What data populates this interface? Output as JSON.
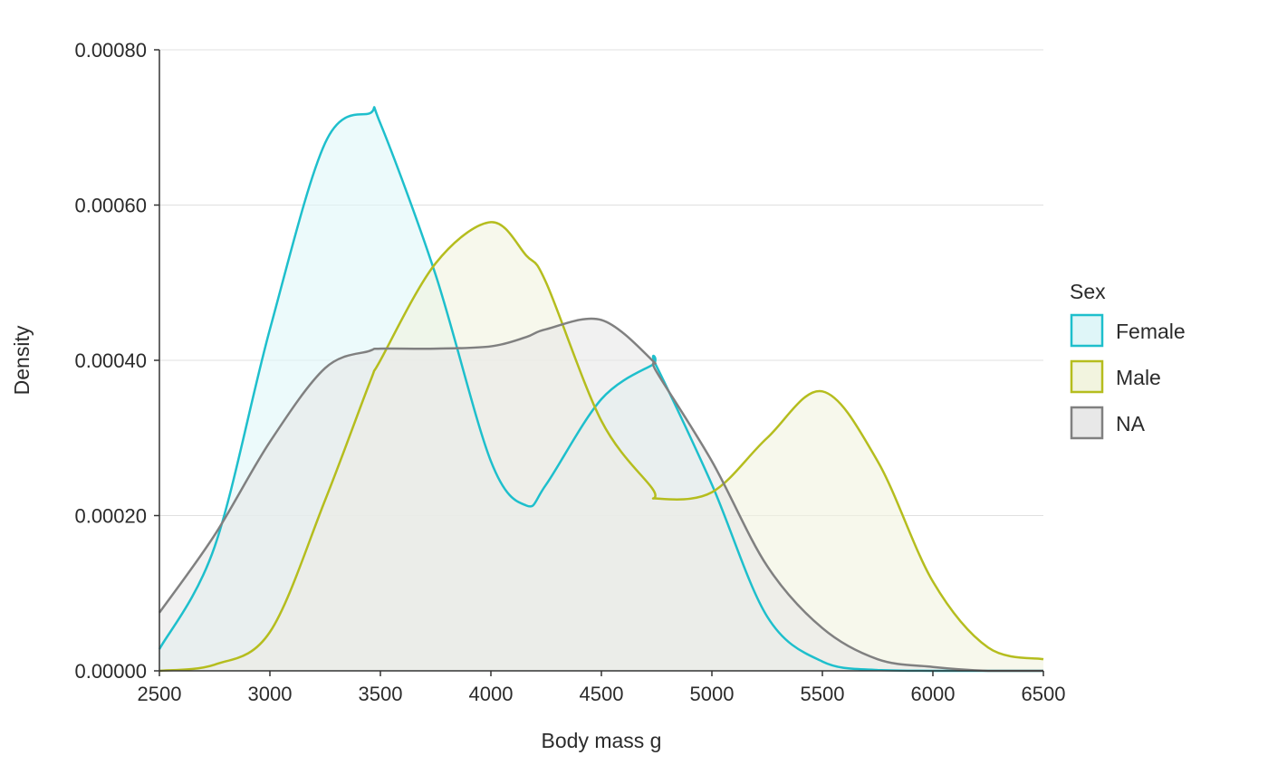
{
  "chart_data": {
    "type": "area",
    "title": "",
    "xlabel": "Body mass g",
    "ylabel": "Density",
    "xlim": [
      2500,
      6500
    ],
    "ylim": [
      0,
      0.0008
    ],
    "x_ticks": [
      "2500",
      "3000",
      "3500",
      "4000",
      "4500",
      "5000",
      "5500",
      "6000",
      "6500"
    ],
    "y_ticks": [
      "0.00000",
      "0.00020",
      "0.00040",
      "0.00060",
      "0.00080"
    ],
    "grid": "horizontal",
    "legend": {
      "title": "Sex",
      "placement": "right"
    },
    "x": [
      2500,
      2750,
      3000,
      3250,
      3450,
      3500,
      3750,
      4000,
      4160,
      4250,
      4500,
      4730,
      4750,
      5000,
      5250,
      5500,
      5750,
      6000,
      6250,
      6500
    ],
    "series": [
      {
        "name": "Female",
        "line_color": "#1ebfcc",
        "fill_color": "#dff6f8",
        "values": [
          2.8e-05,
          0.00016,
          0.00044,
          0.00068,
          0.000718,
          0.000705,
          0.00051,
          0.00027,
          0.000213,
          0.00024,
          0.00035,
          0.000394,
          0.000392,
          0.00024,
          7e-05,
          1.2e-05,
          1e-06,
          0,
          0,
          0
        ]
      },
      {
        "name": "Male",
        "line_color": "#b5bd1e",
        "fill_color": "#f2f4df",
        "values": [
          0,
          8e-06,
          5e-05,
          0.00022,
          0.00037,
          0.0004,
          0.000525,
          0.000578,
          0.000535,
          0.0005,
          0.000322,
          0.000235,
          0.000222,
          0.00023,
          0.0003,
          0.00036,
          0.00027,
          0.000115,
          3e-05,
          1.5e-05
        ]
      },
      {
        "name": "NA",
        "line_color": "#808080",
        "fill_color": "#e8e8e8",
        "values": [
          7.5e-05,
          0.000175,
          0.000295,
          0.00039,
          0.000412,
          0.000415,
          0.000415,
          0.000418,
          0.00043,
          0.00044,
          0.000452,
          0.0004,
          0.000385,
          0.00027,
          0.000135,
          5.5e-05,
          1.5e-05,
          5e-06,
          0,
          0
        ]
      }
    ]
  }
}
